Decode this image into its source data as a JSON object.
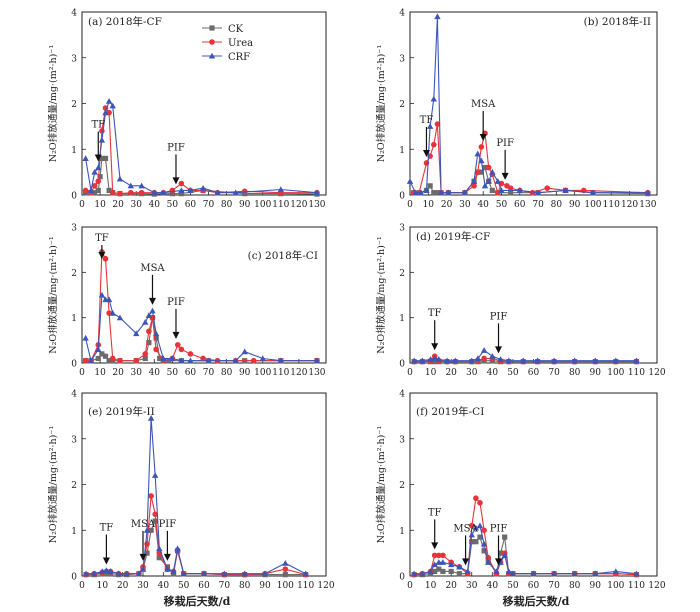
{
  "figure": {
    "ylabel": "N₂O排放通量/mg·(m²·h)⁻¹",
    "xlabel": "移栽后天数/d"
  },
  "legend": [
    {
      "name": "CK",
      "color": "#6b6b6b",
      "marker": "square"
    },
    {
      "name": "Urea",
      "color": "#e8333a",
      "marker": "circle"
    },
    {
      "name": "CRF",
      "color": "#3b55b8",
      "marker": "triangle"
    }
  ],
  "chart_data": [
    {
      "type": "line",
      "title": "(a) 2018年-CF",
      "xlim": [
        0,
        135
      ],
      "ylim": [
        0,
        4
      ],
      "xticks": [
        0,
        10,
        20,
        30,
        40,
        50,
        60,
        70,
        80,
        90,
        100,
        110,
        120,
        130
      ],
      "yticks": [
        0,
        1,
        2,
        3,
        4
      ],
      "annotations": [
        {
          "text": "TF",
          "x": 9
        },
        {
          "text": "PIF",
          "x": 52
        }
      ],
      "series": [
        {
          "name": "CK",
          "x": [
            2,
            5,
            7,
            9,
            10,
            11,
            13,
            15,
            17,
            21,
            33,
            40,
            50,
            55,
            67,
            90,
            110,
            130
          ],
          "y": [
            0.05,
            0.05,
            0.05,
            0.1,
            0.4,
            0.8,
            0.8,
            0.1,
            0.05,
            0.03,
            0.03,
            0.02,
            0.03,
            0.03,
            0.1,
            0.03,
            0.03,
            0.02
          ]
        },
        {
          "name": "Urea",
          "x": [
            2,
            5,
            7,
            9,
            11,
            13,
            15,
            17,
            21,
            27,
            33,
            40,
            45,
            50,
            55,
            60,
            67,
            75,
            90,
            110,
            130
          ],
          "y": [
            0.1,
            0.05,
            0.2,
            0.3,
            1.4,
            1.9,
            1.8,
            0.05,
            0.03,
            0.05,
            0.05,
            0.05,
            0.05,
            0.1,
            0.25,
            0.1,
            0.1,
            0.05,
            0.08,
            0.05,
            0.05
          ]
        },
        {
          "name": "CRF",
          "x": [
            2,
            5,
            7,
            9,
            11,
            13,
            15,
            17,
            21,
            27,
            33,
            40,
            45,
            55,
            60,
            67,
            75,
            85,
            110,
            130
          ],
          "y": [
            0.8,
            0.1,
            0.5,
            0.6,
            1.2,
            1.8,
            2.05,
            1.95,
            0.35,
            0.2,
            0.2,
            0.05,
            0.05,
            0.1,
            0.1,
            0.15,
            0.05,
            0.05,
            0.12,
            0.05
          ]
        }
      ]
    },
    {
      "type": "line",
      "title": "(b) 2018年-II",
      "xlim": [
        0,
        135
      ],
      "ylim": [
        0,
        4
      ],
      "xticks": [
        0,
        10,
        20,
        30,
        40,
        50,
        60,
        70,
        80,
        90,
        100,
        110,
        120,
        130
      ],
      "yticks": [
        0,
        1,
        2,
        3,
        4
      ],
      "annotations": [
        {
          "text": "TF",
          "x": 9
        },
        {
          "text": "MSA",
          "x": 40
        },
        {
          "text": "PIF",
          "x": 52
        }
      ],
      "series": [
        {
          "name": "CK",
          "x": [
            2,
            5,
            9,
            11,
            13,
            15,
            17,
            21,
            30,
            35,
            37,
            39,
            41,
            43,
            45,
            48,
            55,
            70,
            85,
            100,
            130
          ],
          "y": [
            0.05,
            0.05,
            0.1,
            0.2,
            0.05,
            0.05,
            0.05,
            0.05,
            0.05,
            0.3,
            0.5,
            0.5,
            0.6,
            0.3,
            0.1,
            0.05,
            0.05,
            0.05,
            0.1,
            0.05,
            0.03
          ]
        },
        {
          "name": "Urea",
          "x": [
            2,
            5,
            9,
            11,
            13,
            15,
            17,
            21,
            30,
            35,
            37,
            39,
            41,
            43,
            45,
            48,
            50,
            53,
            55,
            60,
            67,
            75,
            85,
            95,
            130
          ],
          "y": [
            0.05,
            0.05,
            0.7,
            0.85,
            1.1,
            1.55,
            0.05,
            0.05,
            0.05,
            0.2,
            0.5,
            1.05,
            1.35,
            0.6,
            0.45,
            0.05,
            0.25,
            0.2,
            0.15,
            0.1,
            0.05,
            0.15,
            0.1,
            0.1,
            0.05
          ]
        },
        {
          "name": "CRF",
          "x": [
            0,
            3,
            6,
            9,
            11,
            13,
            15,
            17,
            21,
            30,
            35,
            37,
            39,
            41,
            43,
            45,
            48,
            50,
            60,
            70,
            85,
            100,
            130
          ],
          "y": [
            0.3,
            0.05,
            0.05,
            0.1,
            1.5,
            2.1,
            3.9,
            0.05,
            0.05,
            0.05,
            0.3,
            0.9,
            0.75,
            0.2,
            0.3,
            0.5,
            0.3,
            0.1,
            0.1,
            0.05,
            0.1,
            0.05,
            0.05
          ]
        }
      ]
    },
    {
      "type": "line",
      "title": "(c) 2018年-CI",
      "xlim": [
        0,
        135
      ],
      "ylim": [
        0,
        3
      ],
      "xticks": [
        0,
        10,
        20,
        30,
        40,
        50,
        60,
        70,
        80,
        90,
        100,
        110,
        120,
        130
      ],
      "yticks": [
        0,
        1,
        2,
        3
      ],
      "annotations": [
        {
          "text": "TF",
          "x": 11
        },
        {
          "text": "MSA",
          "x": 39
        },
        {
          "text": "PIF",
          "x": 52
        }
      ],
      "series": [
        {
          "name": "CK",
          "x": [
            2,
            5,
            9,
            11,
            13,
            15,
            17,
            21,
            30,
            35,
            37,
            39,
            41,
            43,
            45,
            48,
            55,
            70,
            90,
            110,
            130
          ],
          "y": [
            0.05,
            0.05,
            0.1,
            0.2,
            0.15,
            0.05,
            0.05,
            0.05,
            0.05,
            0.1,
            0.45,
            1.0,
            0.55,
            0.1,
            0.05,
            0.05,
            0.05,
            0.05,
            0.05,
            0.05,
            0.05
          ]
        },
        {
          "name": "Urea",
          "x": [
            2,
            5,
            9,
            11,
            13,
            15,
            17,
            21,
            30,
            35,
            37,
            39,
            41,
            45,
            50,
            53,
            55,
            60,
            67,
            75,
            85,
            95,
            110,
            130
          ],
          "y": [
            0.05,
            0.05,
            0.4,
            2.45,
            2.3,
            1.1,
            0.1,
            0.05,
            0.05,
            0.2,
            0.7,
            1.0,
            0.3,
            0.05,
            0.1,
            0.4,
            0.3,
            0.2,
            0.1,
            0.05,
            0.05,
            0.05,
            0.05,
            0.05
          ]
        },
        {
          "name": "CRF",
          "x": [
            2,
            5,
            9,
            11,
            13,
            15,
            17,
            21,
            30,
            35,
            37,
            39,
            41,
            45,
            50,
            55,
            60,
            70,
            85,
            90,
            100,
            110,
            130
          ],
          "y": [
            0.55,
            0.05,
            0.3,
            1.5,
            1.4,
            1.4,
            1.1,
            1.0,
            0.65,
            0.9,
            1.05,
            1.15,
            0.65,
            0.1,
            0.1,
            0.05,
            0.05,
            0.05,
            0.05,
            0.25,
            0.1,
            0.05,
            0.05
          ]
        }
      ]
    },
    {
      "type": "line",
      "title": "(d) 2019年-CF",
      "xlim": [
        0,
        120
      ],
      "ylim": [
        0,
        3
      ],
      "xticks": [
        0,
        10,
        20,
        30,
        40,
        50,
        60,
        70,
        80,
        90,
        100,
        110,
        120
      ],
      "yticks": [
        0,
        1,
        2,
        3
      ],
      "annotations": [
        {
          "text": "TF",
          "x": 12
        },
        {
          "text": "PIF",
          "x": 43
        }
      ],
      "series": [
        {
          "name": "CK",
          "x": [
            2,
            6,
            10,
            12,
            14,
            18,
            22,
            30,
            33,
            36,
            40,
            44,
            48,
            55,
            62,
            70,
            80,
            90,
            100,
            110
          ],
          "y": [
            0.03,
            0.03,
            0.03,
            0.03,
            0.03,
            0.03,
            0.03,
            0.03,
            0.03,
            0.05,
            0.05,
            0.03,
            0.03,
            0.03,
            0.03,
            0.03,
            0.03,
            0.03,
            0.03,
            0.03
          ]
        },
        {
          "name": "Urea",
          "x": [
            2,
            6,
            10,
            12,
            14,
            18,
            22,
            30,
            33,
            36,
            40,
            44,
            48,
            55,
            62,
            70,
            80,
            90,
            100,
            110
          ],
          "y": [
            0.03,
            0.03,
            0.05,
            0.15,
            0.05,
            0.03,
            0.03,
            0.03,
            0.05,
            0.1,
            0.1,
            0.05,
            0.03,
            0.03,
            0.03,
            0.03,
            0.03,
            0.03,
            0.03,
            0.03
          ]
        },
        {
          "name": "CRF",
          "x": [
            2,
            6,
            10,
            12,
            14,
            18,
            22,
            30,
            33,
            36,
            40,
            44,
            48,
            55,
            62,
            70,
            80,
            90,
            100,
            110
          ],
          "y": [
            0.05,
            0.05,
            0.08,
            0.1,
            0.08,
            0.05,
            0.05,
            0.05,
            0.1,
            0.28,
            0.15,
            0.08,
            0.05,
            0.05,
            0.05,
            0.05,
            0.05,
            0.05,
            0.05,
            0.05
          ]
        }
      ]
    },
    {
      "type": "line",
      "title": "(e) 2019年-II",
      "xlim": [
        0,
        120
      ],
      "ylim": [
        0,
        4
      ],
      "xticks": [
        0,
        10,
        20,
        30,
        40,
        50,
        60,
        70,
        80,
        90,
        100,
        110,
        120
      ],
      "yticks": [
        0,
        1,
        2,
        3,
        4
      ],
      "annotations": [
        {
          "text": "TF",
          "x": 12
        },
        {
          "text": "MSA",
          "x": 30
        },
        {
          "text": "PIF",
          "x": 42
        }
      ],
      "series": [
        {
          "name": "CK",
          "x": [
            2,
            6,
            10,
            12,
            14,
            18,
            22,
            28,
            30,
            32,
            34,
            36,
            38,
            42,
            45,
            47,
            50,
            60,
            70,
            80,
            90,
            100,
            110
          ],
          "y": [
            0.03,
            0.03,
            0.05,
            0.05,
            0.05,
            0.03,
            0.03,
            0.05,
            0.15,
            0.5,
            1.0,
            1.2,
            0.4,
            0.2,
            0.05,
            0.55,
            0.05,
            0.05,
            0.03,
            0.03,
            0.03,
            0.03,
            0.03
          ]
        },
        {
          "name": "Urea",
          "x": [
            2,
            6,
            10,
            12,
            14,
            18,
            22,
            28,
            30,
            32,
            34,
            36,
            38,
            42,
            45,
            47,
            50,
            60,
            70,
            80,
            90,
            100,
            110
          ],
          "y": [
            0.03,
            0.05,
            0.08,
            0.1,
            0.1,
            0.05,
            0.05,
            0.05,
            0.2,
            0.7,
            1.75,
            1.35,
            0.5,
            0.15,
            0.1,
            0.55,
            0.05,
            0.05,
            0.03,
            0.03,
            0.05,
            0.15,
            0.03
          ]
        },
        {
          "name": "CRF",
          "x": [
            2,
            6,
            10,
            12,
            14,
            18,
            22,
            28,
            30,
            32,
            34,
            36,
            38,
            42,
            45,
            47,
            50,
            60,
            70,
            80,
            90,
            100,
            110
          ],
          "y": [
            0.05,
            0.05,
            0.1,
            0.12,
            0.1,
            0.05,
            0.05,
            0.05,
            0.15,
            1.0,
            3.45,
            2.2,
            0.6,
            0.15,
            0.1,
            0.6,
            0.05,
            0.05,
            0.05,
            0.05,
            0.05,
            0.28,
            0.05
          ]
        }
      ]
    },
    {
      "type": "line",
      "title": "(f) 2019年-CI",
      "xlim": [
        0,
        120
      ],
      "ylim": [
        0,
        4
      ],
      "xticks": [
        0,
        10,
        20,
        30,
        40,
        50,
        60,
        70,
        80,
        90,
        100,
        110,
        120
      ],
      "yticks": [
        0,
        1,
        2,
        3,
        4
      ],
      "annotations": [
        {
          "text": "TF",
          "x": 12
        },
        {
          "text": "MSA",
          "x": 27
        },
        {
          "text": "PIF",
          "x": 43
        }
      ],
      "series": [
        {
          "name": "CK",
          "x": [
            2,
            6,
            10,
            12,
            14,
            16,
            20,
            24,
            28,
            30,
            32,
            34,
            36,
            38,
            42,
            44,
            46,
            48,
            50,
            60,
            70,
            80,
            90,
            100,
            110
          ],
          "y": [
            0.03,
            0.03,
            0.05,
            0.1,
            0.15,
            0.1,
            0.1,
            0.05,
            0.05,
            0.75,
            0.75,
            0.85,
            0.55,
            0.35,
            0.05,
            0.5,
            0.85,
            0.05,
            0.05,
            0.05,
            0.05,
            0.05,
            0.05,
            0.05,
            0.03
          ]
        },
        {
          "name": "Urea",
          "x": [
            2,
            6,
            10,
            12,
            14,
            16,
            20,
            24,
            28,
            30,
            32,
            34,
            36,
            38,
            42,
            44,
            46,
            48,
            50,
            60,
            70,
            80,
            90,
            100,
            110
          ],
          "y": [
            0.03,
            0.05,
            0.1,
            0.45,
            0.45,
            0.45,
            0.3,
            0.2,
            0.05,
            1.1,
            1.7,
            1.6,
            1.0,
            0.4,
            0.05,
            0.3,
            0.5,
            0.05,
            0.05,
            0.05,
            0.05,
            0.05,
            0.05,
            0.05,
            0.03
          ]
        },
        {
          "name": "CRF",
          "x": [
            2,
            6,
            10,
            12,
            14,
            16,
            20,
            24,
            28,
            30,
            32,
            34,
            36,
            38,
            42,
            44,
            46,
            48,
            50,
            60,
            70,
            80,
            90,
            100,
            110
          ],
          "y": [
            0.05,
            0.05,
            0.1,
            0.25,
            0.3,
            0.3,
            0.25,
            0.2,
            0.1,
            0.9,
            1.05,
            1.1,
            0.7,
            0.3,
            0.1,
            0.3,
            0.45,
            0.1,
            0.05,
            0.05,
            0.05,
            0.05,
            0.05,
            0.1,
            0.05
          ]
        }
      ]
    }
  ]
}
